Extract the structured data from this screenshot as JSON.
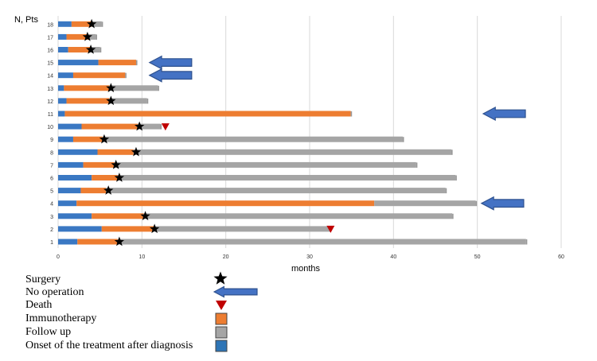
{
  "chart_data": {
    "type": "bar",
    "orientation": "horizontal",
    "stacked": true,
    "ylabel": "N, Pts",
    "xlabel": "months",
    "xlim": [
      0,
      60
    ],
    "xticks": [
      0,
      10,
      20,
      30,
      40,
      50,
      60
    ],
    "grid": "vertical",
    "categories": [
      "1",
      "2",
      "3",
      "4",
      "5",
      "6",
      "7",
      "8",
      "9",
      "10",
      "11",
      "12",
      "13",
      "14",
      "15",
      "16",
      "17",
      "18"
    ],
    "series": [
      {
        "name": "Onset of the treatment after diagnosis",
        "color": "#3a78c3",
        "values": [
          2.3,
          5.2,
          4.0,
          2.2,
          2.7,
          4.0,
          3.0,
          4.7,
          1.8,
          2.8,
          0.8,
          1.0,
          0.7,
          1.8,
          4.8,
          1.2,
          1.0,
          1.6
        ]
      },
      {
        "name": "Immunotherapy",
        "color": "#ed7d31",
        "values": [
          4.8,
          6.2,
          6.2,
          35.5,
          3.0,
          3.1,
          3.7,
          4.3,
          3.5,
          6.7,
          34.1,
          5.1,
          5.4,
          6.2,
          4.5,
          2.6,
          2.6,
          2.4
        ]
      },
      {
        "name": "Follow up",
        "color": "#a5a5a5",
        "values": [
          48.7,
          21.0,
          36.8,
          12.1,
          40.5,
          40.3,
          36.0,
          37.9,
          35.8,
          2.7,
          0.0,
          4.5,
          5.8,
          0.0,
          0.0,
          1.2,
          0.9,
          1.2
        ]
      }
    ],
    "surgery": [
      {
        "patient": "1",
        "x": 7.3
      },
      {
        "patient": "2",
        "x": 11.5
      },
      {
        "patient": "3",
        "x": 10.4
      },
      {
        "patient": "5",
        "x": 6.0
      },
      {
        "patient": "6",
        "x": 7.3
      },
      {
        "patient": "7",
        "x": 6.9
      },
      {
        "patient": "8",
        "x": 9.3
      },
      {
        "patient": "9",
        "x": 5.5
      },
      {
        "patient": "10",
        "x": 9.7
      },
      {
        "patient": "12",
        "x": 6.3
      },
      {
        "patient": "13",
        "x": 6.3
      },
      {
        "patient": "16",
        "x": 3.9
      },
      {
        "patient": "17",
        "x": 3.5
      },
      {
        "patient": "18",
        "x": 4.0
      }
    ],
    "death": [
      {
        "patient": "2",
        "x": 32.5
      },
      {
        "patient": "10",
        "x": 12.8
      }
    ],
    "no_operation": [
      {
        "patient": "4",
        "x": 50.5
      },
      {
        "patient": "11",
        "x": 50.7
      },
      {
        "patient": "14",
        "x": 10.9
      },
      {
        "patient": "15",
        "x": 10.9
      }
    ],
    "legend": [
      {
        "label": "Surgery",
        "icon": "star-icon",
        "color": "#000000"
      },
      {
        "label": "No operation",
        "icon": "arrow-left-icon",
        "color": "#4472c4"
      },
      {
        "label": "Death",
        "icon": "triangle-down-icon",
        "color": "#c00000"
      },
      {
        "label": "Immunotherapy",
        "icon": "square-icon",
        "color": "#ed7d31"
      },
      {
        "label": "Follow up",
        "icon": "square-icon",
        "color": "#a5a5a5"
      },
      {
        "label": "Onset of the treatment after diagnosis",
        "icon": "square-icon",
        "color": "#2e75b6"
      }
    ]
  }
}
